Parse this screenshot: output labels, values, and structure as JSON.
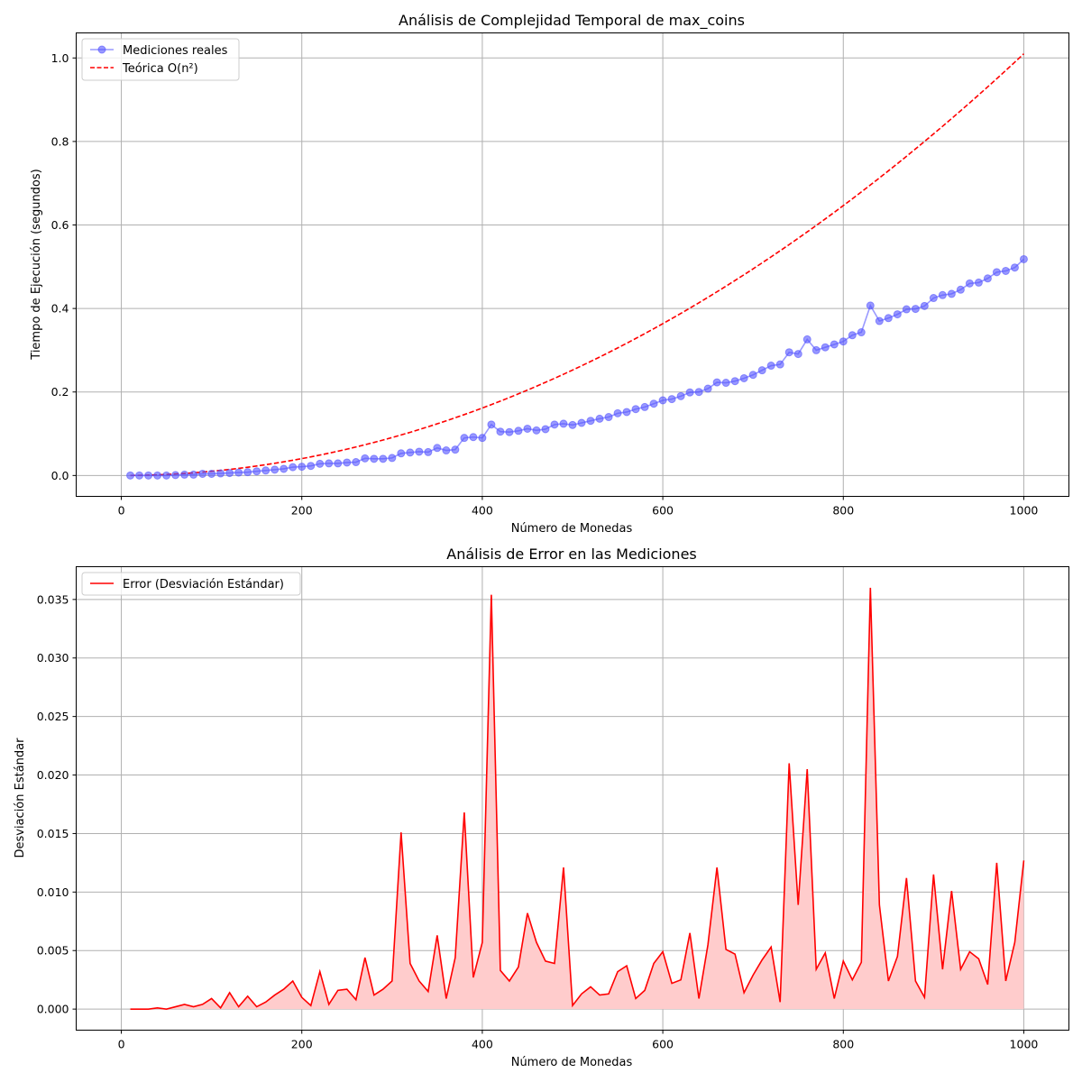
{
  "chart_data": [
    {
      "type": "line",
      "title": "Análisis de Complejidad Temporal de max_coins",
      "xlabel": "Número de Monedas",
      "ylabel": "Tiempo de Ejecución (segundos)",
      "xlim": [
        -50,
        1050
      ],
      "ylim": [
        -0.05,
        1.06
      ],
      "xticks": [
        0,
        200,
        400,
        600,
        800,
        1000
      ],
      "yticks": [
        0.0,
        0.2,
        0.4,
        0.6,
        0.8,
        1.0
      ],
      "grid": true,
      "legend_position": "top-left",
      "x": [
        10,
        20,
        30,
        40,
        50,
        60,
        70,
        80,
        90,
        100,
        110,
        120,
        130,
        140,
        150,
        160,
        170,
        180,
        190,
        200,
        210,
        220,
        230,
        240,
        250,
        260,
        270,
        280,
        290,
        300,
        310,
        320,
        330,
        340,
        350,
        360,
        370,
        380,
        390,
        400,
        410,
        420,
        430,
        440,
        450,
        460,
        470,
        480,
        490,
        500,
        510,
        520,
        530,
        540,
        550,
        560,
        570,
        580,
        590,
        600,
        610,
        620,
        630,
        640,
        650,
        660,
        670,
        680,
        690,
        700,
        710,
        720,
        730,
        740,
        750,
        760,
        770,
        780,
        790,
        800,
        810,
        820,
        830,
        840,
        850,
        860,
        870,
        880,
        890,
        900,
        910,
        920,
        930,
        940,
        950,
        960,
        970,
        980,
        990,
        1000
      ],
      "series": [
        {
          "name": "Mediciones reales",
          "color": "#5555ff",
          "style": "line-marker",
          "values": [
            0.0,
            0.0,
            0.0,
            0.0,
            0.0,
            0.001,
            0.002,
            0.002,
            0.004,
            0.004,
            0.005,
            0.006,
            0.007,
            0.008,
            0.01,
            0.012,
            0.014,
            0.016,
            0.02,
            0.021,
            0.023,
            0.028,
            0.029,
            0.029,
            0.031,
            0.032,
            0.041,
            0.04,
            0.04,
            0.042,
            0.053,
            0.055,
            0.057,
            0.056,
            0.066,
            0.06,
            0.062,
            0.09,
            0.092,
            0.09,
            0.122,
            0.105,
            0.104,
            0.107,
            0.112,
            0.108,
            0.111,
            0.122,
            0.124,
            0.121,
            0.126,
            0.131,
            0.136,
            0.14,
            0.149,
            0.152,
            0.159,
            0.164,
            0.172,
            0.18,
            0.183,
            0.19,
            0.199,
            0.2,
            0.208,
            0.223,
            0.222,
            0.226,
            0.233,
            0.241,
            0.252,
            0.263,
            0.266,
            0.295,
            0.291,
            0.326,
            0.3,
            0.307,
            0.314,
            0.321,
            0.336,
            0.343,
            0.407,
            0.37,
            0.377,
            0.386,
            0.398,
            0.399,
            0.406,
            0.425,
            0.432,
            0.435,
            0.445,
            0.46,
            0.462,
            0.472,
            0.487,
            0.49,
            0.498,
            0.518
          ]
        },
        {
          "name": "Teórica O(n²)",
          "color": "#ff0000",
          "style": "dashed",
          "formula_coefficient": 1.01e-06
        }
      ]
    },
    {
      "type": "area",
      "title": "Análisis de Error en las Mediciones",
      "xlabel": "Número de Monedas",
      "ylabel": "Desviación Estándar",
      "xlim": [
        -50,
        1050
      ],
      "ylim": [
        -0.0018,
        0.0378
      ],
      "xticks": [
        0,
        200,
        400,
        600,
        800,
        1000
      ],
      "yticks": [
        0.0,
        0.005,
        0.01,
        0.015,
        0.02,
        0.025,
        0.03,
        0.035
      ],
      "ytick_labels": [
        "0.000",
        "0.005",
        "0.010",
        "0.015",
        "0.020",
        "0.025",
        "0.030",
        "0.035"
      ],
      "grid": true,
      "legend_position": "top-left",
      "x": [
        10,
        20,
        30,
        40,
        50,
        60,
        70,
        80,
        90,
        100,
        110,
        120,
        130,
        140,
        150,
        160,
        170,
        180,
        190,
        200,
        210,
        220,
        230,
        240,
        250,
        260,
        270,
        280,
        290,
        300,
        310,
        320,
        330,
        340,
        350,
        360,
        370,
        380,
        390,
        400,
        410,
        420,
        430,
        440,
        450,
        460,
        470,
        480,
        490,
        500,
        510,
        520,
        530,
        540,
        550,
        560,
        570,
        580,
        590,
        600,
        610,
        620,
        630,
        640,
        650,
        660,
        670,
        680,
        690,
        700,
        710,
        720,
        730,
        740,
        750,
        760,
        770,
        780,
        790,
        800,
        810,
        820,
        830,
        840,
        850,
        860,
        870,
        880,
        890,
        900,
        910,
        920,
        930,
        940,
        950,
        960,
        970,
        980,
        990,
        1000
      ],
      "series": [
        {
          "name": "Error (Desviación Estándar)",
          "color": "#ff0000",
          "fill": "#ffcccc",
          "values": [
            0.0,
            0.0,
            0.0,
            0.0001,
            0.0,
            0.0002,
            0.0004,
            0.0002,
            0.0004,
            0.0009,
            0.0001,
            0.0014,
            0.0002,
            0.0011,
            0.0002,
            0.0006,
            0.0012,
            0.0017,
            0.0024,
            0.001,
            0.0003,
            0.0032,
            0.0004,
            0.0016,
            0.0017,
            0.0008,
            0.0044,
            0.0012,
            0.0017,
            0.0024,
            0.0151,
            0.0039,
            0.0024,
            0.0015,
            0.0063,
            0.0009,
            0.0044,
            0.0168,
            0.0027,
            0.0057,
            0.0354,
            0.0033,
            0.0024,
            0.0036,
            0.0082,
            0.0057,
            0.0041,
            0.0039,
            0.0121,
            0.0003,
            0.0013,
            0.0019,
            0.0012,
            0.0013,
            0.0032,
            0.0037,
            0.0009,
            0.0016,
            0.0039,
            0.0049,
            0.0022,
            0.0025,
            0.0065,
            0.0009,
            0.0055,
            0.0121,
            0.0051,
            0.0047,
            0.0014,
            0.0029,
            0.0042,
            0.0053,
            0.0006,
            0.021,
            0.0089,
            0.0205,
            0.0034,
            0.0048,
            0.0009,
            0.0041,
            0.0025,
            0.004,
            0.036,
            0.0089,
            0.0024,
            0.0045,
            0.0112,
            0.0024,
            0.001,
            0.0115,
            0.0034,
            0.0101,
            0.0034,
            0.0049,
            0.0043,
            0.0021,
            0.0125,
            0.0024,
            0.0057,
            0.0127
          ]
        }
      ]
    }
  ]
}
